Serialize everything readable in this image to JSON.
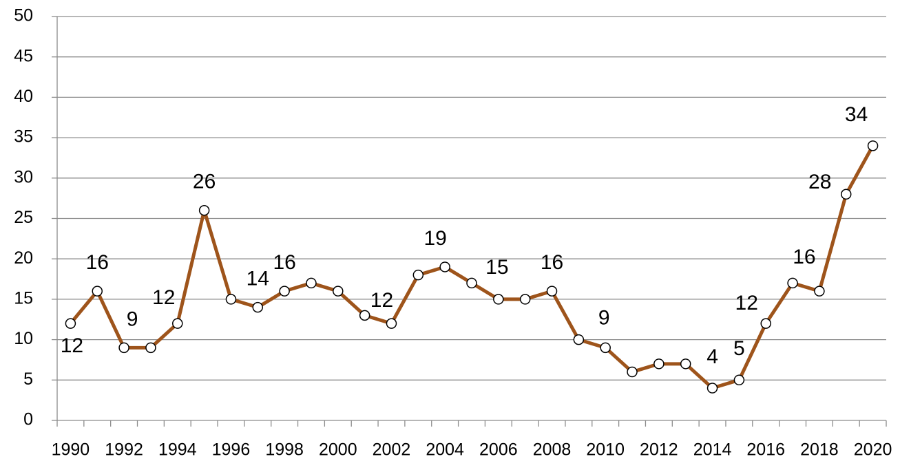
{
  "chart_data": {
    "type": "line",
    "categories": [
      "1990",
      null,
      "1992",
      null,
      "1994",
      null,
      "1996",
      null,
      "1998",
      null,
      "2000",
      null,
      "2002",
      null,
      "2004",
      null,
      "2006",
      null,
      "2008",
      null,
      "2010",
      null,
      "2012",
      null,
      "2014",
      null,
      "2016",
      null,
      "2018",
      null,
      "2020"
    ],
    "series": [
      {
        "color": "#9e541b",
        "values": [
          12,
          16,
          9,
          9,
          12,
          26,
          15,
          14,
          16,
          17,
          16,
          13,
          12,
          18,
          19,
          17,
          15,
          15,
          16,
          10,
          9,
          6,
          7,
          7,
          4,
          5,
          12,
          17,
          16,
          28,
          34
        ],
        "value_labels": [
          "12",
          "16",
          "9",
          null,
          "12",
          "26",
          null,
          "14",
          "16",
          null,
          null,
          null,
          "12",
          null,
          "19",
          null,
          "15",
          null,
          "16",
          null,
          "9",
          null,
          null,
          null,
          "4",
          "5",
          "12",
          null,
          "16",
          "28",
          "34"
        ]
      }
    ],
    "ylim": [
      0,
      50
    ],
    "yticks": [
      0,
      5,
      10,
      15,
      20,
      25,
      30,
      35,
      40,
      45,
      50
    ],
    "grid": true
  }
}
